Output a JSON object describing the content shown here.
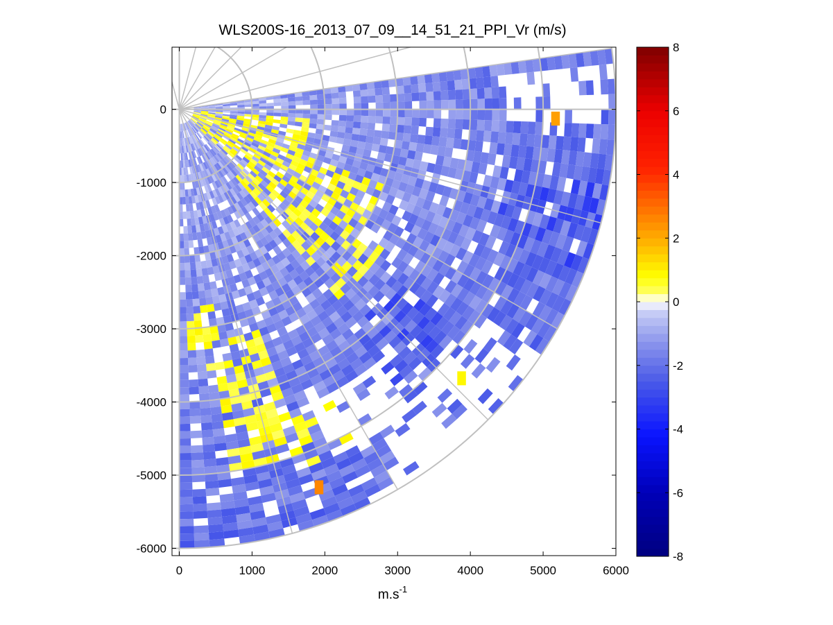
{
  "chart_data": {
    "type": "heatmap",
    "subtype": "ppi-polar-sector",
    "title": "WLS200S-16_2013_07_09__14_51_21_PPI_Vr (m/s)",
    "xlabel_base": "m.s",
    "xlabel_sup": "-1",
    "ylabel": "",
    "xlim": [
      -100,
      6000
    ],
    "ylim": [
      -6100,
      850
    ],
    "x_ticks": [
      0,
      1000,
      2000,
      3000,
      4000,
      5000,
      6000
    ],
    "y_ticks": [
      0,
      -1000,
      -2000,
      -3000,
      -4000,
      -5000,
      -6000
    ],
    "grid": true,
    "grid_color": "#c0c0c0",
    "polar_grid": {
      "origin": [
        0,
        0
      ],
      "range_rings": [
        1000,
        2000,
        3000,
        4000,
        5000,
        6000
      ],
      "radial_angles_deg": [
        30,
        45,
        60,
        75,
        90,
        105,
        120,
        135,
        150,
        165,
        180
      ]
    },
    "scan": {
      "azimuth_start_deg": 82,
      "azimuth_end_deg": 180,
      "azimuth_step_deg": 2,
      "range_min": 100,
      "range_max": 6000,
      "range_gate": 100
    },
    "colorbar": {
      "label": "",
      "range": [
        -8,
        8
      ],
      "ticks": [
        8,
        6,
        4,
        2,
        0,
        -2,
        -4,
        -6,
        -8
      ],
      "tick_labels": [
        "8",
        "6",
        "4",
        "2",
        "0",
        "-2",
        "-4",
        "-6",
        "-8"
      ],
      "colormap": [
        {
          "v": -8,
          "c": "#00007f"
        },
        {
          "v": -6,
          "c": "#0000b8"
        },
        {
          "v": -4.2,
          "c": "#0a14ff"
        },
        {
          "v": -2.5,
          "c": "#4a5ae8"
        },
        {
          "v": -1.3,
          "c": "#8a94ec"
        },
        {
          "v": -0.4,
          "c": "#c2c8f5"
        },
        {
          "v": -0.05,
          "c": "#f2f3fc"
        },
        {
          "v": 0.05,
          "c": "#fffff0"
        },
        {
          "v": 0.3,
          "c": "#ffff60"
        },
        {
          "v": 0.8,
          "c": "#ffff00"
        },
        {
          "v": 1.8,
          "c": "#ffb800"
        },
        {
          "v": 2.8,
          "c": "#ff7a00"
        },
        {
          "v": 4.2,
          "c": "#ff2200"
        },
        {
          "v": 6,
          "c": "#ec0000"
        },
        {
          "v": 8,
          "c": "#7f0000"
        }
      ]
    },
    "regions": [
      {
        "az": [
          95,
          115
        ],
        "r": [
          100,
          1800
        ],
        "v": 0.6,
        "comment_free": true
      },
      {
        "az": [
          115,
          140
        ],
        "r": [
          1200,
          2800
        ],
        "v": 0.5
      },
      {
        "az": [
          110,
          130
        ],
        "r": [
          1600,
          3000
        ],
        "v": 0.5
      },
      {
        "az": [
          125,
          140
        ],
        "r": [
          2500,
          3400
        ],
        "v": 0.4
      },
      {
        "az": [
          160,
          172
        ],
        "r": [
          3200,
          5000
        ],
        "v": 0.6
      },
      {
        "az": [
          150,
          160
        ],
        "r": [
          4500,
          5200
        ],
        "v": 0.5
      },
      {
        "az": [
          170,
          178
        ],
        "r": [
          2600,
          3600
        ],
        "v": 0.5
      }
    ],
    "gaps": [
      {
        "az": [
          85,
          92
        ],
        "r": [
          4500,
          5800
        ]
      },
      {
        "az": [
          135,
          147
        ],
        "r": [
          5000,
          6000
        ]
      },
      {
        "az": [
          142,
          155
        ],
        "r": [
          4400,
          5200
        ]
      },
      {
        "az": [
          124,
          136
        ],
        "r": [
          5000,
          6000
        ]
      }
    ],
    "strong_negative": [
      {
        "az": [
          100,
          112
        ],
        "r": [
          4600,
          6000
        ],
        "v": -2.8
      },
      {
        "az": [
          128,
          142
        ],
        "r": [
          3800,
          4900
        ],
        "v": -2.6
      }
    ],
    "hot_spots": [
      {
        "x": 5170,
        "y": -90,
        "v": 2.2
      },
      {
        "x": 1920,
        "y": -5130,
        "v": 2.6
      },
      {
        "x": 3880,
        "y": -3640,
        "v": 0.9
      }
    ]
  }
}
